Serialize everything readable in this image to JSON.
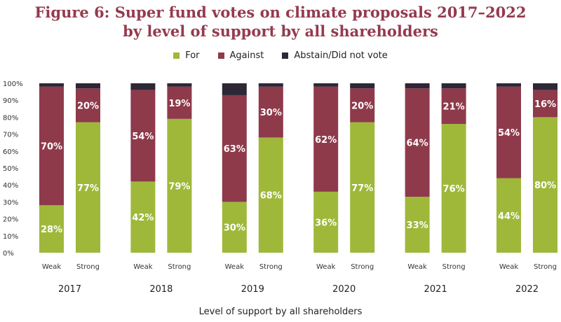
{
  "chart_data": {
    "type": "bar",
    "stacked": true,
    "title_line1": "Figure 6:  Super fund votes on climate proposals 2017–2022",
    "title_line2": "by level of support by all shareholders",
    "xlabel": "Level of support by all shareholders",
    "ylim": [
      0,
      100
    ],
    "y_ticks": [
      "0%",
      "10%",
      "20%",
      "30%",
      "40%",
      "50%",
      "60%",
      "70%",
      "80%",
      "90%",
      "100%"
    ],
    "groups": [
      "2017",
      "2018",
      "2019",
      "2020",
      "2021",
      "2022"
    ],
    "subcategories": [
      "Weak",
      "Strong"
    ],
    "legend_position": "top-center",
    "grid": false,
    "series": [
      {
        "name": "For",
        "color": "#9fb83a",
        "values": [
          28,
          77,
          42,
          79,
          30,
          68,
          36,
          77,
          33,
          76,
          44,
          80
        ],
        "labels": [
          "28%",
          "77%",
          "42%",
          "79%",
          "30%",
          "68%",
          "36%",
          "77%",
          "33%",
          "76%",
          "44%",
          "80%"
        ]
      },
      {
        "name": "Against",
        "color": "#8e3a4b",
        "values": [
          70,
          20,
          54,
          19,
          63,
          30,
          62,
          20,
          64,
          21,
          54,
          16
        ],
        "labels": [
          "70%",
          "20%",
          "54%",
          "19%",
          "63%",
          "30%",
          "62%",
          "20%",
          "64%",
          "21%",
          "54%",
          "16%"
        ]
      },
      {
        "name": "Abstain/Did not vote",
        "color": "#2e2736",
        "values": [
          2,
          3,
          4,
          2,
          7,
          2,
          2,
          3,
          3,
          3,
          2,
          4
        ],
        "labels": [
          "",
          "",
          "",
          "",
          "",
          "",
          "",
          "",
          "",
          "",
          "",
          ""
        ]
      }
    ]
  }
}
